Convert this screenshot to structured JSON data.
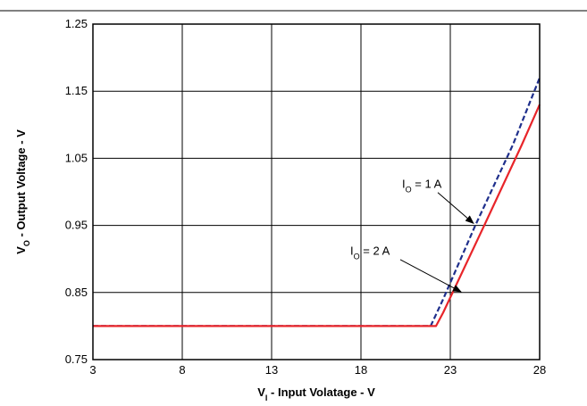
{
  "chart_data": {
    "type": "line",
    "title": "",
    "xlabel": {
      "main": "V",
      "sub": "I",
      "rest": " - Input Volatage - V"
    },
    "ylabel": {
      "main": "V",
      "sub": "O",
      "rest": " - Output Voltage - V"
    },
    "xlim": [
      3,
      28
    ],
    "ylim": [
      0.75,
      1.25
    ],
    "xticks": [
      3,
      8,
      13,
      18,
      23,
      28
    ],
    "yticks": [
      0.75,
      0.85,
      0.95,
      1.05,
      1.15,
      1.25
    ],
    "xtick_labels": [
      "3",
      "8",
      "13",
      "18",
      "23",
      "28"
    ],
    "ytick_labels": [
      "0.75",
      "0.85",
      "0.95",
      "1.05",
      "1.15",
      "1.25"
    ],
    "grid": true,
    "series": [
      {
        "key": "io_1a",
        "color": "#1f2f8c",
        "dash": true,
        "x": [
          3,
          21.9,
          22.6,
          24.4,
          26.5,
          28
        ],
        "y": [
          0.8,
          0.8,
          0.84,
          0.95,
          1.07,
          1.17
        ]
      },
      {
        "key": "io_2a",
        "color": "#e8252a",
        "dash": false,
        "x": [
          3,
          22.2,
          22.6,
          24.9,
          27.0,
          28
        ],
        "y": [
          0.8,
          0.8,
          0.82,
          0.95,
          1.07,
          1.13
        ]
      }
    ],
    "annotations": [
      {
        "main": "I",
        "sub": "O",
        "rest": " = 1 A",
        "series": "io_1a",
        "text_at": [
          20.3,
          1.006
        ],
        "arrow_from": [
          22.3,
          0.999
        ],
        "arrow_to": [
          24.3,
          0.953
        ]
      },
      {
        "main": "I",
        "sub": "O",
        "rest": " = 2 A",
        "series": "io_2a",
        "text_at": [
          17.4,
          0.906
        ],
        "arrow_from": [
          20.2,
          0.899
        ],
        "arrow_to": [
          23.6,
          0.851
        ]
      }
    ]
  }
}
